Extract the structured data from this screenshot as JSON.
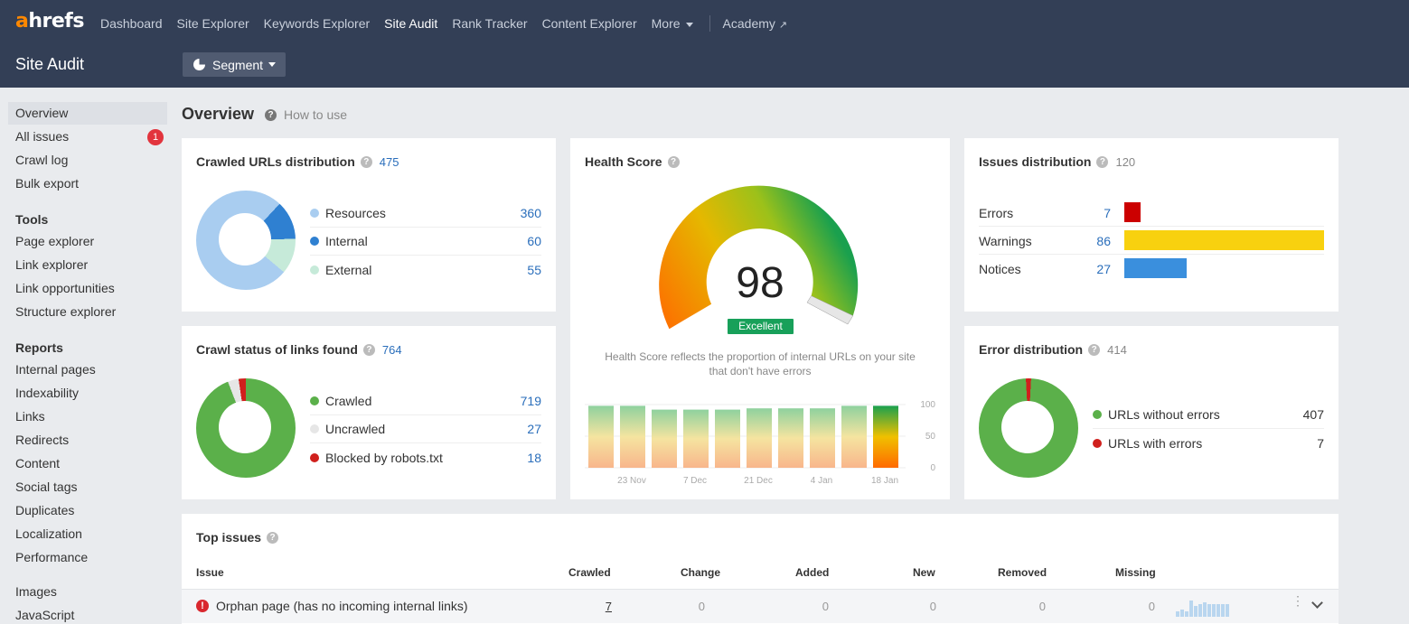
{
  "brand": {
    "logo_a": "a",
    "logo_rest": "hrefs",
    "accent": "#ff8800"
  },
  "nav": {
    "items": [
      "Dashboard",
      "Site Explorer",
      "Keywords Explorer",
      "Site Audit",
      "Rank Tracker",
      "Content Explorer"
    ],
    "active": "Site Audit",
    "more": "More",
    "academy": "Academy"
  },
  "header": {
    "title": "Site Audit",
    "segment": "Segment"
  },
  "sidebar": {
    "top": [
      {
        "label": "Overview",
        "active": true
      },
      {
        "label": "All issues",
        "badge": "1"
      },
      {
        "label": "Crawl log"
      },
      {
        "label": "Bulk export"
      }
    ],
    "tools_heading": "Tools",
    "tools": [
      "Page explorer",
      "Link explorer",
      "Link opportunities",
      "Structure explorer"
    ],
    "reports_heading": "Reports",
    "reports": [
      "Internal pages",
      "Indexability",
      "Links",
      "Redirects",
      "Content",
      "Social tags",
      "Duplicates",
      "Localization",
      "Performance"
    ],
    "more": [
      "Images",
      "JavaScript"
    ]
  },
  "overview": {
    "title": "Overview",
    "howto": "How to use"
  },
  "crawled_urls": {
    "title": "Crawled URLs distribution",
    "count": "475",
    "rows": [
      {
        "label": "Resources",
        "value": "360",
        "color": "#a9cdf0"
      },
      {
        "label": "Internal",
        "value": "60",
        "color": "#2f80d1"
      },
      {
        "label": "External",
        "value": "55",
        "color": "#c6ead9"
      }
    ]
  },
  "crawl_status": {
    "title": "Crawl status of links found",
    "count": "764",
    "rows": [
      {
        "label": "Crawled",
        "value": "719",
        "color": "#5bb04a"
      },
      {
        "label": "Uncrawled",
        "value": "27",
        "color": "#e6e6e6"
      },
      {
        "label": "Blocked by robots.txt",
        "value": "18",
        "color": "#d0201d"
      }
    ]
  },
  "health": {
    "title": "Health Score",
    "score": "98",
    "rating": "Excellent",
    "description": "Health Score reflects the proportion of internal URLs on your site that don't have errors",
    "history_values": [
      98,
      98,
      92,
      92,
      92,
      94,
      94,
      94,
      98,
      98
    ],
    "y_ticks": [
      "100",
      "50",
      "0"
    ],
    "x_ticks": [
      "23 Nov",
      "7 Dec",
      "21 Dec",
      "4 Jan",
      "18 Jan"
    ]
  },
  "issues_dist": {
    "title": "Issues distribution",
    "count": "120",
    "rows": [
      {
        "label": "Errors",
        "value": "7",
        "color": "#cc0000"
      },
      {
        "label": "Warnings",
        "value": "86",
        "color": "#f8d10f"
      },
      {
        "label": "Notices",
        "value": "27",
        "color": "#3a8fdd"
      }
    ]
  },
  "error_dist": {
    "title": "Error distribution",
    "count": "414",
    "rows": [
      {
        "label": "URLs without errors",
        "value": "407",
        "color": "#5bb04a"
      },
      {
        "label": "URLs with errors",
        "value": "7",
        "color": "#d0201d"
      }
    ]
  },
  "top_issues": {
    "title": "Top issues",
    "columns": [
      "Issue",
      "Crawled",
      "Change",
      "Added",
      "New",
      "Removed",
      "Missing"
    ],
    "rows": [
      {
        "issue": "Orphan page (has no incoming internal links)",
        "crawled": "7",
        "change": "0",
        "added": "0",
        "new": "0",
        "removed": "0",
        "missing": "0"
      }
    ]
  }
}
